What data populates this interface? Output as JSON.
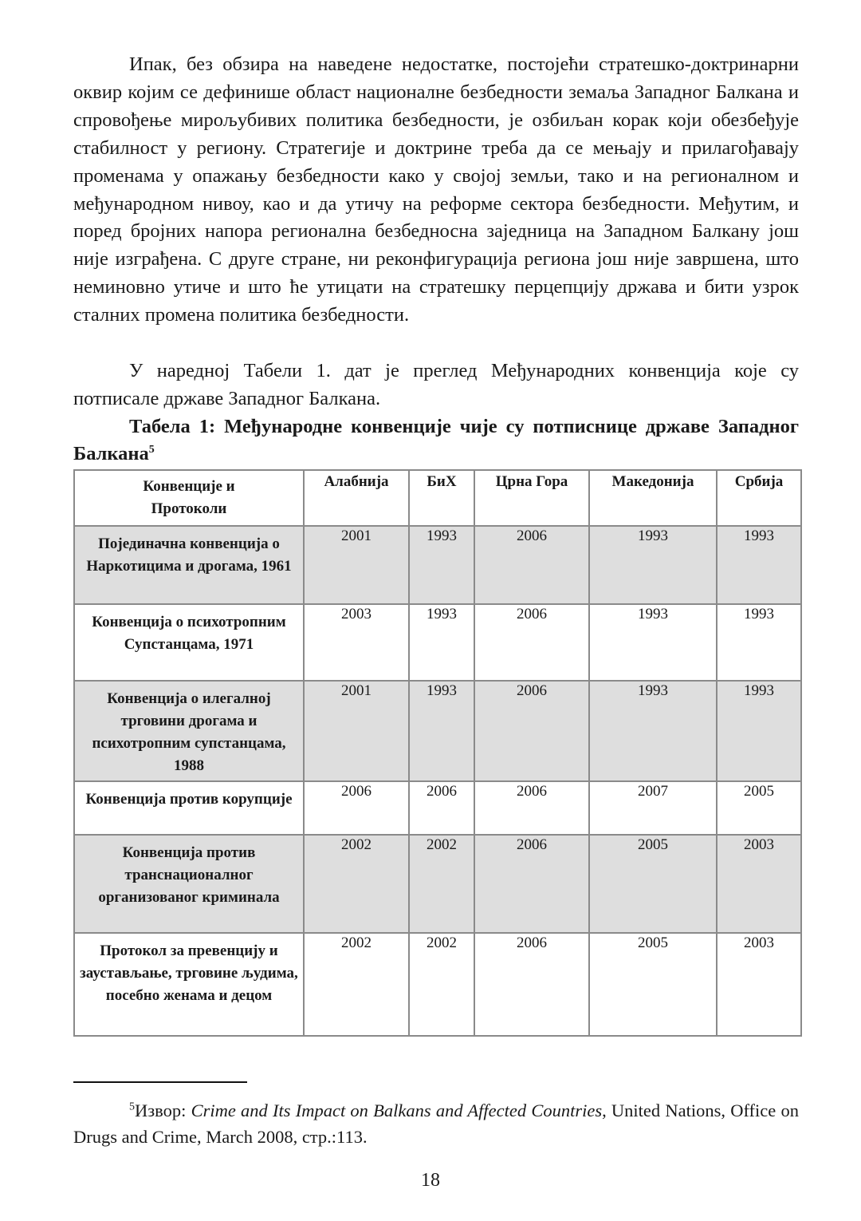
{
  "paragraphs": [
    "Ипак, без обзира на наведене недостатке, постојећи стратешко-доктринарни оквир којим се дефинише област националне безбедности земаља Западног Балкана и спровођење мирољубивих политика безбедности, је озбиљан корак који обезбеђује стабилност у региону. Стратегије и доктрине треба да се мењају и прилагођавају променама у опажању безбедности како у својој земљи, тако и на регионалном и међународном нивоу, као и да утичу на реформе сектора безбедности. Међутим, и поред бројних напора регионална безбедносна заједница на Западном Балкану још није изграђена. С друге стране, ни реконфигурација региона још није завршена, што неминовно утиче и што ће утицати на стратешку перцепцију држава и бити узрок сталних промена политика безбедности.",
    "У наредној Табели 1. дат је преглед Међународних конвенција које су потписале државе Западног Балкана."
  ],
  "table": {
    "caption": "Табела 1: Међународне конвенције чије су потписнице државе Западног Балкана",
    "caption_footnote_ref": "5",
    "headers": [
      "Конвенције и Протоколи",
      "Алабнија",
      "БиХ",
      "Црна Гора",
      "Македонија",
      "Србија"
    ],
    "rows": [
      {
        "name": "Појединачна конвенција о Наркотицима и дрогама, 1961",
        "values": [
          "2001",
          "1993",
          "2006",
          "1993",
          "1993"
        ],
        "shaded": true
      },
      {
        "name": "Конвенција о психотропним Супстанцама, 1971",
        "values": [
          "2003",
          "1993",
          "2006",
          "1993",
          "1993"
        ],
        "shaded": false
      },
      {
        "name": "Конвенција о илегалној трговини дрогама и психотропним супстанцама, 1988",
        "values": [
          "2001",
          "1993",
          "2006",
          "1993",
          "1993"
        ],
        "shaded": true
      },
      {
        "name": "Конвенција против корупције",
        "values": [
          "2006",
          "2006",
          "2006",
          "2007",
          "2005"
        ],
        "shaded": false
      },
      {
        "name": "Конвенција против транснационалног организованог криминала",
        "values": [
          "2002",
          "2002",
          "2006",
          "2005",
          "2003"
        ],
        "shaded": true
      },
      {
        "name": "Протокол за превенцију и заустављање, трговине људима, посебно женама и децом",
        "values": [
          "2002",
          "2002",
          "2006",
          "2005",
          "2003"
        ],
        "shaded": false
      }
    ]
  },
  "footnote": {
    "number": "5",
    "prefix": "Извор: ",
    "title": "Crime and Its Impact on Balkans and Affected Countries",
    "suffix": ", United Nations, Office on Drugs and Crime, March 2008, стр.:113."
  },
  "page_number": "18"
}
